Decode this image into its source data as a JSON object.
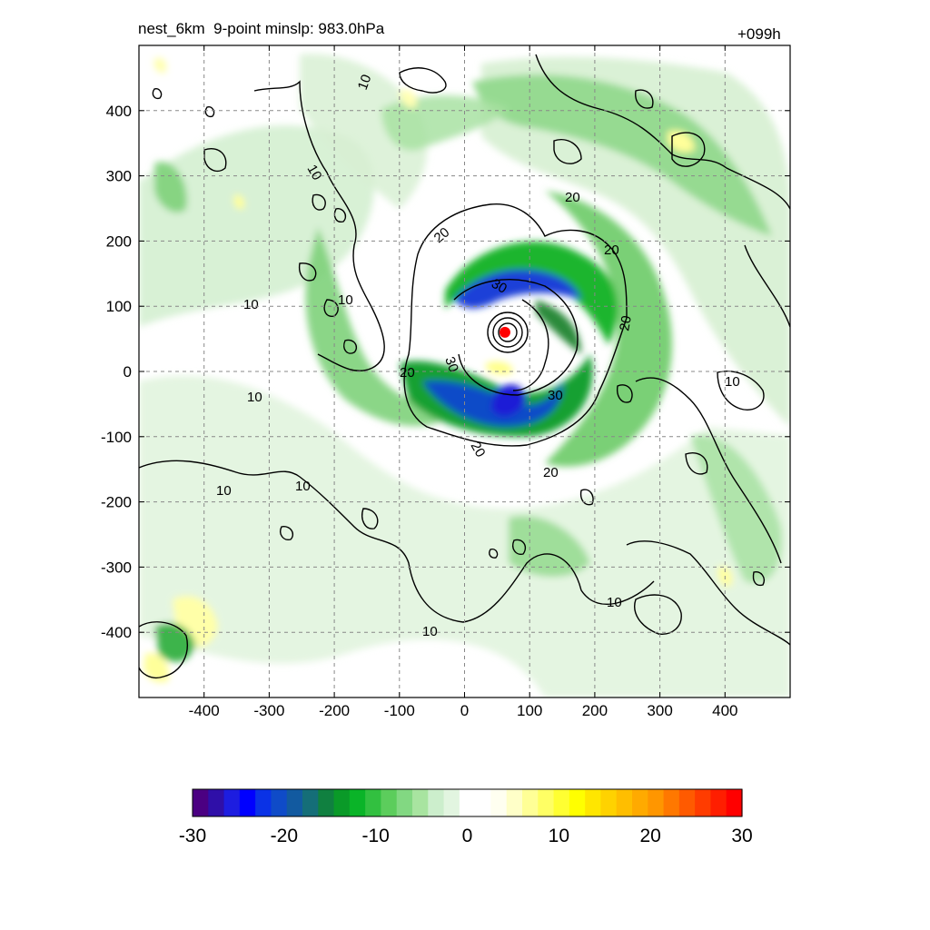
{
  "header": {
    "title": "nest_6km  9-point minslp: 983.0hPa",
    "forecast_hour": "+099h"
  },
  "map": {
    "x_ticks": [
      -400,
      -300,
      -200,
      -100,
      0,
      100,
      200,
      300,
      400
    ],
    "y_ticks": [
      400,
      300,
      200,
      100,
      0,
      -100,
      -200,
      -300,
      -400
    ],
    "x_range": [
      -500,
      500
    ],
    "y_range": [
      -500,
      500
    ],
    "grid": true,
    "center_marker": {
      "x": 62,
      "y": 60,
      "color": "#ff0000"
    },
    "contour_labels": [
      "10",
      "10",
      "10",
      "10",
      "10",
      "10",
      "10",
      "10",
      "10",
      "10",
      "20",
      "20",
      "20",
      "20",
      "20",
      "20",
      "20",
      "30",
      "30",
      "30"
    ]
  },
  "colorbar": {
    "labels": [
      "-30",
      "-20",
      "-10",
      "0",
      "10",
      "20",
      "30"
    ],
    "range": [
      -30,
      30
    ],
    "colors": [
      "#4b0082",
      "#2f0fa8",
      "#1d1de0",
      "#0000ff",
      "#0a32e6",
      "#0f4bc8",
      "#125aa0",
      "#156e78",
      "#108040",
      "#0a9a28",
      "#0ab428",
      "#32c040",
      "#5ccd5c",
      "#82d882",
      "#a8e4a0",
      "#cceecc",
      "#e2f5e0",
      "#ffffff",
      "#ffffff",
      "#fffff0",
      "#ffffc8",
      "#ffff96",
      "#ffff64",
      "#ffff32",
      "#ffff00",
      "#ffe600",
      "#ffd200",
      "#ffbe00",
      "#ffaa00",
      "#ff9600",
      "#ff7800",
      "#ff5a00",
      "#ff3c00",
      "#ff1e00",
      "#ff0000"
    ]
  }
}
